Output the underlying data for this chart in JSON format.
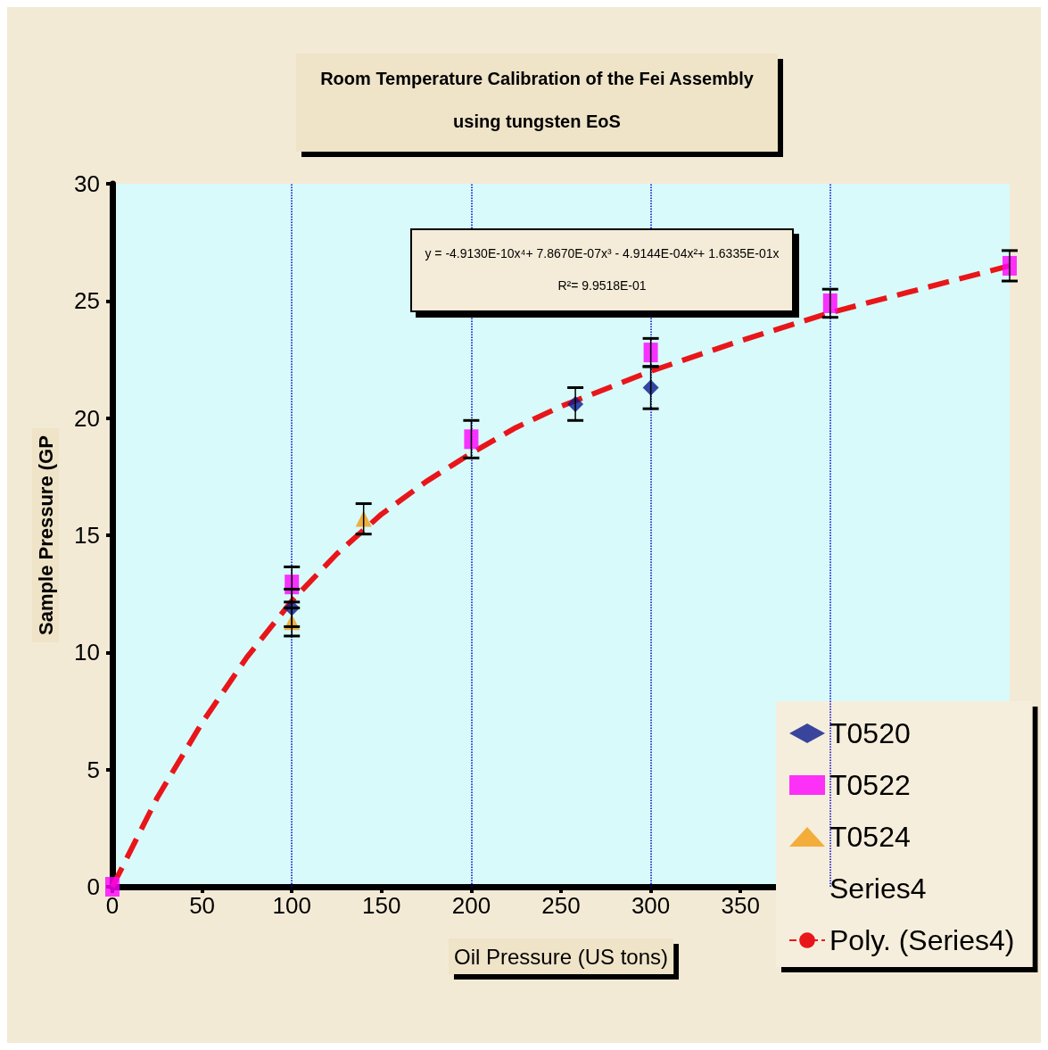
{
  "chart_data": {
    "type": "scatter",
    "title": "Room Temperature Calibration of the Fei Assembly\nusing tungsten EoS",
    "xlabel": "Oil Pressure (US tons)",
    "ylabel": "Sample Pressure (GP",
    "xlim": [
      0,
      500
    ],
    "xticks": [
      0,
      50,
      100,
      150,
      200,
      250,
      300,
      350
    ],
    "ylim": [
      0,
      30
    ],
    "yticks": [
      0,
      5,
      10,
      15,
      20,
      25,
      30
    ],
    "grid": false,
    "legend": "bottom right",
    "ref_lines": [
      {
        "axis": "x",
        "value": 100,
        "color": "#0000cc",
        "line_style": "dotted"
      },
      {
        "axis": "x",
        "value": 200,
        "color": "#0000cc",
        "line_style": "dotted"
      },
      {
        "axis": "x",
        "value": 300,
        "color": "#0000cc",
        "line_style": "dotted"
      },
      {
        "axis": "x",
        "value": 400,
        "color": "#0000cc",
        "line_style": "dotted"
      }
    ],
    "annotations": [
      "y = -4.9130E-10x⁴+ 7.8670E-07x³ - 4.9144E-04x²+ 1.6335E-01x",
      "R²= 9.9518E-01"
    ],
    "series": [
      {
        "name": "T0520",
        "color": "#0a1a8c",
        "marker": "diamond",
        "x": [
          100,
          258,
          300
        ],
        "values": [
          11.9,
          20.6,
          21.3
        ],
        "errors": [
          0.8,
          0.7,
          0.9
        ]
      },
      {
        "name": "T0522",
        "color": "#ff00ff",
        "marker": "square",
        "x": [
          0,
          100,
          200,
          300,
          400,
          500
        ],
        "values": [
          0,
          12.9,
          19.1,
          22.8,
          24.9,
          26.5
        ],
        "errors": [
          null,
          0.75,
          0.8,
          0.6,
          0.6,
          0.65
        ]
      },
      {
        "name": "T0524",
        "color": "#f39c12",
        "marker": "triangle",
        "x": [
          100,
          140
        ],
        "values": [
          11.3,
          15.7
        ],
        "errors": [
          0.6,
          0.65
        ]
      },
      {
        "name": "Series4",
        "marker": "none"
      },
      {
        "name": "Poly. (Series4)",
        "type": "line",
        "color": "#e8161a",
        "line_style": "dashed",
        "marker": "none",
        "x": [
          0,
          25,
          50,
          75,
          100,
          125,
          150,
          175,
          200,
          225,
          250,
          300,
          350,
          400,
          450,
          500
        ],
        "values": [
          0,
          3.8,
          7.0,
          9.8,
          12.2,
          14.2,
          15.9,
          17.3,
          18.5,
          19.6,
          20.5,
          22.0,
          23.3,
          24.5,
          25.5,
          26.5
        ]
      }
    ]
  }
}
